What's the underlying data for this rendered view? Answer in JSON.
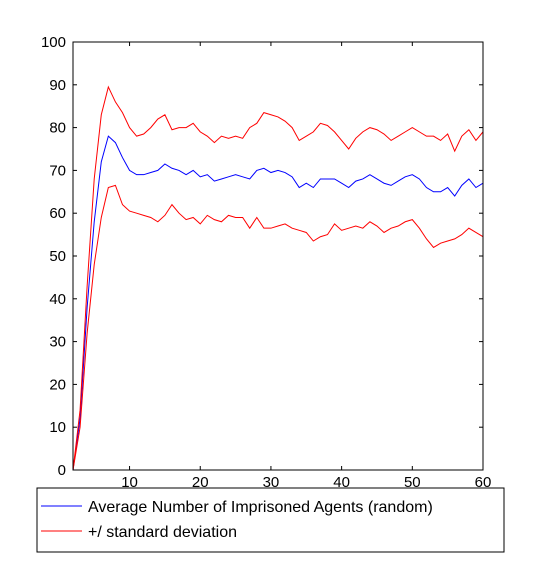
{
  "chart_data": {
    "type": "line",
    "xlim": [
      2,
      60
    ],
    "ylim": [
      0,
      100
    ],
    "xticks": [
      10,
      20,
      30,
      40,
      50,
      60
    ],
    "yticks": [
      0,
      10,
      20,
      30,
      40,
      50,
      60,
      70,
      80,
      90,
      100
    ],
    "grid": false,
    "legend_position": "bottom",
    "x": [
      2,
      3,
      4,
      5,
      6,
      7,
      8,
      9,
      10,
      11,
      12,
      13,
      14,
      15,
      16,
      17,
      18,
      19,
      20,
      21,
      22,
      23,
      24,
      25,
      26,
      27,
      28,
      29,
      30,
      31,
      32,
      33,
      34,
      35,
      36,
      37,
      38,
      39,
      40,
      41,
      42,
      43,
      44,
      45,
      46,
      47,
      48,
      49,
      50,
      51,
      52,
      53,
      54,
      55,
      56,
      57,
      58,
      59,
      60
    ],
    "series": [
      {
        "name": "Average Number of Imprisoned Agents (random)",
        "color": "#0000ff",
        "values": [
          0,
          12,
          38,
          58,
          72,
          78,
          76.5,
          73,
          70,
          69,
          69,
          69.5,
          70,
          71.5,
          70.5,
          70,
          69,
          70,
          68.5,
          69,
          67.5,
          68,
          68.5,
          69,
          68.5,
          68,
          70,
          70.5,
          69.5,
          70,
          69.5,
          68.5,
          66,
          67,
          66,
          68,
          68,
          68,
          67,
          66,
          67.5,
          68,
          69,
          68,
          67,
          66.5,
          67.5,
          68.5,
          69,
          68,
          66,
          65,
          65,
          66,
          64,
          66.5,
          68,
          66,
          67
        ]
      },
      {
        "name": "+/  standard deviation",
        "color": "#ff0000",
        "values": [
          0,
          14,
          43,
          68,
          83,
          89.5,
          86,
          83.5,
          80,
          78,
          78.5,
          80,
          82,
          83,
          79.5,
          80,
          80,
          81,
          79,
          78,
          76.5,
          78,
          77.5,
          78,
          77.5,
          80,
          81,
          83.5,
          83,
          82.5,
          81.5,
          80,
          77,
          78,
          79,
          81,
          80.5,
          79,
          77,
          75,
          77.5,
          79,
          80,
          79.5,
          78.5,
          77,
          78,
          79,
          80,
          79,
          78,
          78,
          77,
          78.5,
          74.5,
          78,
          79.5,
          77,
          79
        ]
      },
      {
        "name": "",
        "color": "#ff0000",
        "values": [
          0,
          10,
          32,
          48,
          59,
          66,
          66.5,
          62,
          60.5,
          60,
          59.5,
          59,
          58,
          59.5,
          62,
          60,
          58.5,
          59,
          57.5,
          59.5,
          58.5,
          58,
          59.5,
          59,
          59,
          56.5,
          59,
          56.5,
          56.5,
          57,
          57.5,
          56.5,
          56,
          55.5,
          53.5,
          54.5,
          55,
          57.5,
          56,
          56.5,
          57,
          56.5,
          58,
          57,
          55.5,
          56.5,
          57,
          58,
          58.5,
          56.5,
          54,
          52,
          53,
          53.5,
          54,
          55,
          56.5,
          55.5,
          54.5
        ]
      }
    ]
  }
}
